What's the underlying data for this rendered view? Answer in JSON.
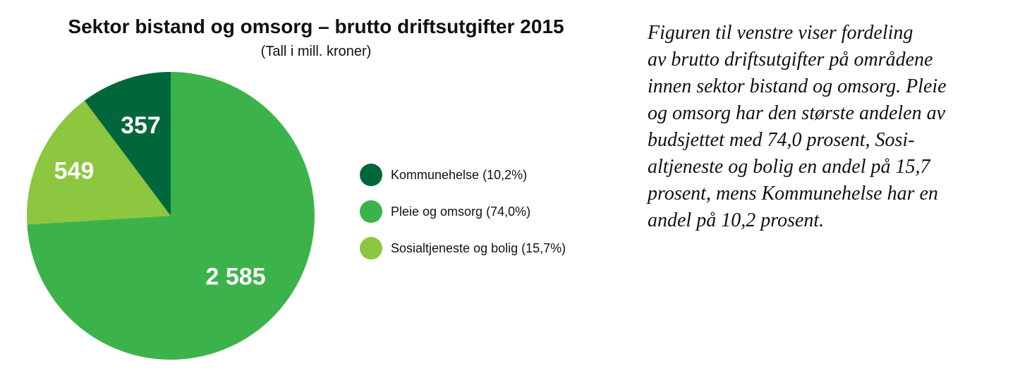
{
  "chart_data": {
    "type": "pie",
    "title": "Sektor bistand og omsorg – brutto driftsutgifter 2015",
    "subtitle": "(Tall i mill. kroner)",
    "slices": [
      {
        "label": "Kommunehelse (10,2%)",
        "value": 357,
        "value_label": "357",
        "color": "#00673a"
      },
      {
        "label": "Pleie og omsorg (74,0%)",
        "value": 2585,
        "value_label": "2 585",
        "color": "#3cb34a"
      },
      {
        "label": "Sosialtjeneste og bolig (15,7%)",
        "value": 549,
        "value_label": "549",
        "color": "#8dc63f"
      }
    ],
    "legend_position": "right"
  },
  "description_lines": [
    "Figuren til venstre viser fordeling",
    "av brutto driftsutgifter på områdene",
    "innen sektor bistand og omsorg. Pleie",
    "og omsorg har den største andelen av",
    "budsjettet med 74,0 prosent, Sosi-",
    "altjeneste og bolig en andel på 15,7",
    "prosent, mens Kommunehelse har en",
    "andel på 10,2 prosent."
  ]
}
